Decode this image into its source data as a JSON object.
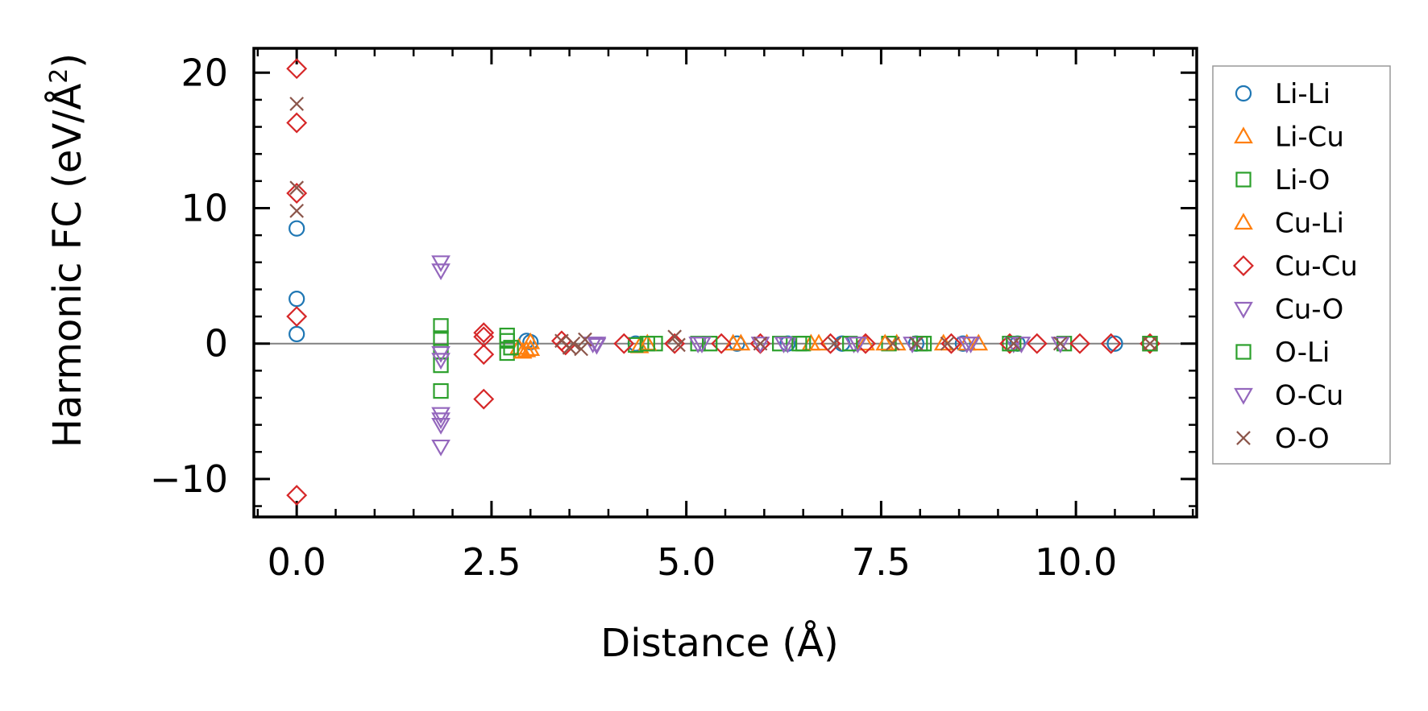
{
  "chart_data": {
    "type": "scatter",
    "xlabel": "Distance (Å)",
    "ylabel": "Harmonic FC (eV/Å²)",
    "ylabel_parts": {
      "main": "Harmonic FC (eV/Å",
      "sup": "2",
      "end": ")"
    },
    "xlim": [
      -0.55,
      11.55
    ],
    "ylim": [
      -12.8,
      21.8
    ],
    "xticks": [
      0.0,
      2.5,
      5.0,
      7.5,
      10.0
    ],
    "xtick_labels": [
      "0.0",
      "2.5",
      "5.0",
      "7.5",
      "10.0"
    ],
    "yticks": [
      -10,
      0,
      10,
      20
    ],
    "ytick_labels": [
      "−10",
      "0",
      "10",
      "20"
    ],
    "legend_position": "outside-right",
    "zero_line": true,
    "series": [
      {
        "name": "Li-Li",
        "marker": "circle",
        "color": "#1f77b4",
        "points": [
          [
            0.0,
            8.5
          ],
          [
            0.0,
            3.3
          ],
          [
            0.0,
            0.7
          ],
          [
            2.95,
            0.2
          ],
          [
            3.0,
            0.1
          ],
          [
            4.35,
            0.0
          ],
          [
            5.65,
            0.0
          ],
          [
            6.3,
            0.0
          ],
          [
            7.0,
            0.0
          ],
          [
            7.95,
            0.0
          ],
          [
            8.55,
            0.0
          ],
          [
            9.25,
            0.0
          ],
          [
            10.5,
            0.0
          ],
          [
            10.95,
            0.0
          ]
        ]
      },
      {
        "name": "Li-Cu",
        "marker": "triangle-up",
        "color": "#ff7f0e",
        "points": [
          [
            2.85,
            -0.3
          ],
          [
            2.95,
            -0.5
          ],
          [
            3.0,
            0.1
          ],
          [
            4.4,
            -0.2
          ],
          [
            5.6,
            0.0
          ],
          [
            6.6,
            0.0
          ],
          [
            7.3,
            0.0
          ],
          [
            7.7,
            0.0
          ],
          [
            8.3,
            0.0
          ],
          [
            8.75,
            0.0
          ]
        ]
      },
      {
        "name": "Li-O",
        "marker": "square",
        "color": "#2ca02c",
        "points": [
          [
            1.85,
            1.3
          ],
          [
            1.85,
            0.4
          ],
          [
            1.85,
            -0.6
          ],
          [
            1.85,
            -1.6
          ],
          [
            1.85,
            -3.5
          ],
          [
            2.7,
            0.6
          ],
          [
            2.7,
            -0.7
          ],
          [
            4.35,
            -0.1
          ],
          [
            4.6,
            0.0
          ],
          [
            5.15,
            0.0
          ],
          [
            6.2,
            0.0
          ],
          [
            6.5,
            0.0
          ],
          [
            7.6,
            0.0
          ],
          [
            8.0,
            0.0
          ],
          [
            9.15,
            0.0
          ],
          [
            9.85,
            0.0
          ],
          [
            10.95,
            0.0
          ]
        ]
      },
      {
        "name": "Cu-Li",
        "marker": "triangle-up",
        "color": "#ff7f0e",
        "points": [
          [
            2.9,
            -0.6
          ],
          [
            3.0,
            -0.4
          ],
          [
            4.5,
            0.0
          ],
          [
            5.7,
            0.0
          ],
          [
            6.7,
            0.0
          ],
          [
            7.55,
            0.0
          ],
          [
            8.6,
            0.0
          ]
        ]
      },
      {
        "name": "Cu-Cu",
        "marker": "diamond",
        "color": "#d62728",
        "points": [
          [
            0.0,
            20.3
          ],
          [
            0.0,
            16.3
          ],
          [
            0.0,
            11.1
          ],
          [
            0.0,
            2.0
          ],
          [
            0.0,
            -11.2
          ],
          [
            2.4,
            0.8
          ],
          [
            2.4,
            0.5
          ],
          [
            2.4,
            -0.8
          ],
          [
            2.4,
            -4.1
          ],
          [
            3.4,
            0.2
          ],
          [
            3.45,
            -0.1
          ],
          [
            4.2,
            0.0
          ],
          [
            4.85,
            0.0
          ],
          [
            5.45,
            0.0
          ],
          [
            5.95,
            0.0
          ],
          [
            6.85,
            0.0
          ],
          [
            7.3,
            0.0
          ],
          [
            8.4,
            0.0
          ],
          [
            9.15,
            0.0
          ],
          [
            9.5,
            0.0
          ],
          [
            10.05,
            0.0
          ],
          [
            10.45,
            0.0
          ],
          [
            10.95,
            0.0
          ]
        ]
      },
      {
        "name": "Cu-O",
        "marker": "triangle-down",
        "color": "#9467bd",
        "points": [
          [
            1.85,
            6.0
          ],
          [
            1.85,
            5.4
          ],
          [
            1.85,
            -0.7
          ],
          [
            1.85,
            -1.2
          ],
          [
            1.85,
            -5.2
          ],
          [
            1.85,
            -5.6
          ],
          [
            1.85,
            -6.0
          ],
          [
            1.85,
            -7.6
          ],
          [
            3.8,
            0.0
          ],
          [
            3.85,
            -0.1
          ],
          [
            5.15,
            0.0
          ],
          [
            5.95,
            0.0
          ],
          [
            6.3,
            0.0
          ],
          [
            7.15,
            0.0
          ],
          [
            7.9,
            0.0
          ],
          [
            8.65,
            0.0
          ],
          [
            9.2,
            0.0
          ],
          [
            9.8,
            0.0
          ]
        ]
      },
      {
        "name": "O-Li",
        "marker": "square",
        "color": "#2ca02c",
        "points": [
          [
            2.7,
            0.2
          ],
          [
            2.75,
            -0.3
          ],
          [
            4.5,
            0.0
          ],
          [
            5.3,
            0.0
          ],
          [
            6.45,
            0.0
          ],
          [
            7.1,
            0.0
          ],
          [
            8.05,
            0.0
          ],
          [
            9.2,
            0.0
          ],
          [
            10.95,
            0.0
          ]
        ]
      },
      {
        "name": "O-Cu",
        "marker": "triangle-down",
        "color": "#9467bd",
        "points": [
          [
            3.85,
            0.0
          ],
          [
            5.2,
            0.0
          ],
          [
            6.25,
            0.0
          ],
          [
            7.2,
            0.0
          ],
          [
            8.6,
            0.0
          ],
          [
            9.3,
            0.0
          ]
        ]
      },
      {
        "name": "O-O",
        "marker": "x",
        "color": "#8c564b",
        "points": [
          [
            0.0,
            17.7
          ],
          [
            0.0,
            11.5
          ],
          [
            0.0,
            9.8
          ],
          [
            3.4,
            0.2
          ],
          [
            3.5,
            -0.3
          ],
          [
            3.55,
            0.0
          ],
          [
            3.65,
            -0.4
          ],
          [
            3.7,
            0.3
          ],
          [
            4.85,
            0.5
          ],
          [
            4.9,
            -0.1
          ],
          [
            5.95,
            0.0
          ],
          [
            6.9,
            0.0
          ],
          [
            7.65,
            0.0
          ],
          [
            7.95,
            0.0
          ],
          [
            8.35,
            0.0
          ],
          [
            9.2,
            0.0
          ],
          [
            9.8,
            0.0
          ],
          [
            10.95,
            0.0
          ]
        ]
      }
    ]
  }
}
